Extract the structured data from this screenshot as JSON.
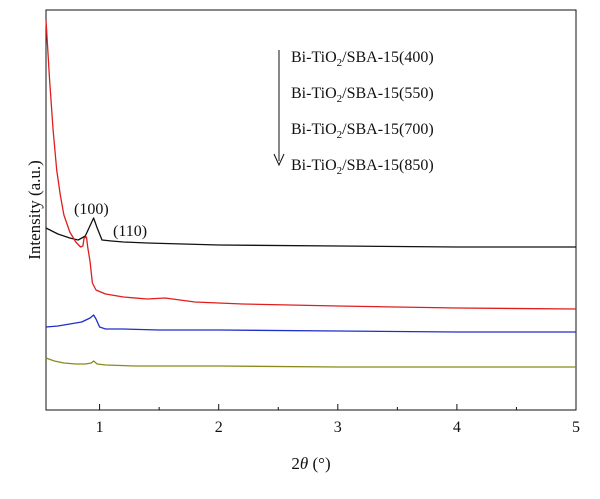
{
  "chart_data": {
    "type": "line",
    "title": "",
    "xlabel": "2θ (°)",
    "ylabel": "Intensity (a.u.)",
    "xlim": [
      0.55,
      5
    ],
    "xticks": [
      1,
      2,
      3,
      4,
      5
    ],
    "x_tick_labels": [
      "1",
      "2",
      "3",
      "4",
      "5"
    ],
    "y_ticks_shown": false,
    "grid": false,
    "legend_placement": "top-right",
    "legend_note": "downward arrow indicates legend order matches curves top to bottom",
    "annotations": [
      {
        "text": "(100)",
        "x": 0.95
      },
      {
        "text": "(110)",
        "x": 1.16
      }
    ],
    "colors": {
      "black": "#111111",
      "red": "#e01e1e",
      "blue": "#1f2fc8",
      "olive": "#8a8a1a"
    },
    "series": [
      {
        "name": "Bi-TiO2/SBA-15(400)",
        "color": "#111111",
        "x": [
          0.55,
          0.65,
          0.75,
          0.82,
          0.88,
          0.93,
          0.95,
          0.98,
          1.02,
          1.1,
          1.2,
          1.4,
          1.7,
          2.0,
          3.0,
          4.0,
          5.0
        ],
        "y": [
          228,
          234,
          238,
          240,
          236,
          223,
          218,
          228,
          240,
          241,
          242,
          243,
          244,
          245,
          246,
          247,
          247
        ]
      },
      {
        "name": "Bi-TiO2/SBA-15(550)",
        "color": "#e01e1e",
        "x": [
          0.55,
          0.58,
          0.61,
          0.64,
          0.67,
          0.7,
          0.75,
          0.8,
          0.84,
          0.86,
          0.87,
          0.89,
          0.9,
          0.92,
          0.94,
          0.97,
          1.05,
          1.2,
          1.4,
          1.55,
          1.8,
          2.2,
          3.0,
          4.0,
          5.0
        ],
        "y": [
          20,
          80,
          130,
          170,
          195,
          215,
          232,
          242,
          247,
          246,
          238,
          237,
          247,
          262,
          283,
          290,
          294,
          297,
          299,
          298,
          302,
          304,
          306,
          308,
          309
        ]
      },
      {
        "name": "Bi-TiO2/SBA-15(700)",
        "color": "#1f2fc8",
        "x": [
          0.55,
          0.65,
          0.75,
          0.85,
          0.92,
          0.95,
          0.97,
          1.0,
          1.05,
          1.2,
          1.5,
          2.0,
          3.0,
          4.0,
          5.0
        ],
        "y": [
          327,
          326,
          324,
          322,
          318,
          315,
          319,
          327,
          329,
          329,
          330,
          330,
          331,
          332,
          332
        ]
      },
      {
        "name": "Bi-TiO2/SBA-15(850)",
        "color": "#8a8a1a",
        "x": [
          0.55,
          0.62,
          0.7,
          0.8,
          0.88,
          0.93,
          0.95,
          0.98,
          1.05,
          1.3,
          2.0,
          3.0,
          4.0,
          5.0
        ],
        "y": [
          358,
          361,
          363,
          364,
          364,
          363,
          361,
          364,
          365,
          366,
          366,
          367,
          367,
          367
        ]
      }
    ]
  },
  "legend": {
    "entries": [
      {
        "prefix": "Bi-TiO",
        "sub": "2",
        "suffix": "/SBA-15(400)"
      },
      {
        "prefix": "Bi-TiO",
        "sub": "2",
        "suffix": "/SBA-15(550)"
      },
      {
        "prefix": "Bi-TiO",
        "sub": "2",
        "suffix": "/SBA-15(700)"
      },
      {
        "prefix": "Bi-TiO",
        "sub": "2",
        "suffix": "/SBA-15(850)"
      }
    ]
  },
  "axis": {
    "ylabel_text": "Intensity (a.u.)",
    "xlabel_main": "2",
    "xlabel_theta": "θ",
    "xlabel_unit": " (°)"
  }
}
